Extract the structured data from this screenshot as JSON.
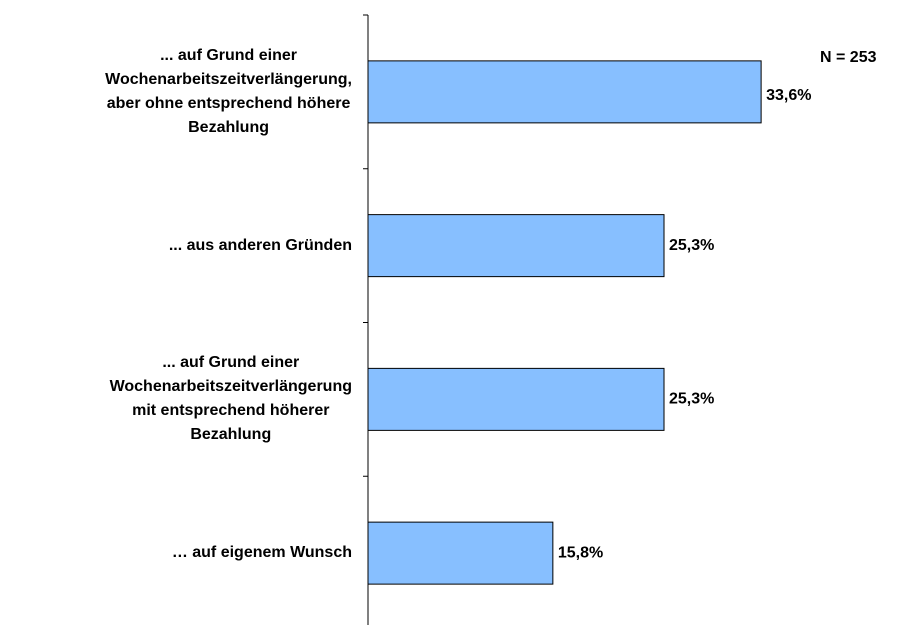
{
  "chart_data": {
    "type": "hbar",
    "categories": [
      "... auf Grund einer\nWochenarbeitszeitverlängerung,\naber ohne entsprechend höhere\nBezahlung",
      "... aus anderen Gründen",
      "... auf Grund einer\nWochenarbeitszeitverlängerung\nmit entsprechend höherer\nBezahlung",
      "… auf eigenem Wunsch"
    ],
    "values": [
      33.6,
      25.3,
      25.3,
      15.8
    ],
    "value_labels": [
      "33,6%",
      "25,3%",
      "25,3%",
      "15,8%"
    ],
    "color": "#87bfff",
    "xlim": [
      0,
      40
    ],
    "annotation": "N = 253"
  }
}
